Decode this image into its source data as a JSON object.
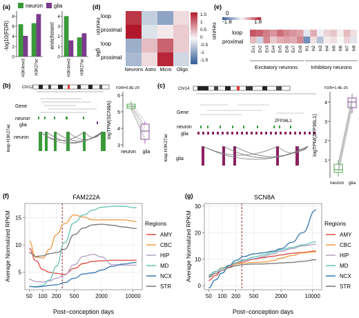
{
  "panels": {
    "a": {
      "tag": "(a)",
      "legend": [
        "neuron",
        "glia"
      ],
      "ylabel_left": "-log10(FDR)",
      "ylabel_right": "enrichment",
      "categories": [
        "H3K4me3",
        "H3K27ac"
      ],
      "colors": {
        "neuron": "#3a9a3a",
        "glia": "#7a3b8c"
      }
    },
    "b": {
      "tag": "(b)",
      "chrom": "Chr12",
      "gene_row": "Gene",
      "neuron_row": "neuron",
      "glia_row": "glia",
      "track_label": "loop H3K27ac",
      "loop_neuron": "neuron",
      "fdr": "FDR=6.8E-29",
      "ylabel": "logTPM(SCN8A)",
      "xcats": [
        "neuron",
        "glia"
      ]
    },
    "c": {
      "tag": "(c)",
      "chrom": "Chr14",
      "gene_row": "Gene",
      "gene_name": "ZFP36L1",
      "neuron_row": "neuron",
      "glia_row": "glia",
      "track_label": "loop H3K27ac",
      "loop_glia": "glia",
      "fdr": "FDR=1.4E-25",
      "ylabel": "logTPM(ZFP36L1)",
      "xcats": [
        "neuron",
        "glia"
      ]
    },
    "d": {
      "tag": "(d)",
      "rows": [
        "loop",
        "proximal",
        "loop",
        "proximal"
      ],
      "groups": [
        "neuron",
        "glia"
      ],
      "cols": [
        "Neurons",
        "Astro",
        "Micro",
        "Oligo"
      ],
      "colorbar": [
        "1.5",
        "1",
        "0.5",
        "0",
        "-0.5",
        "-1",
        "-1.5"
      ]
    },
    "e": {
      "tag": "(e)",
      "rows": [
        "loop",
        "proximal"
      ],
      "group": "neuron",
      "scale_min": "-1.8",
      "scale_zero": "0",
      "scale_max": "1.8",
      "cols": [
        "Ex1",
        "Ex2",
        "Ex3",
        "Ex4",
        "Ex5",
        "Ex6",
        "Ex7",
        "Ex8",
        "In1",
        "In2",
        "In3",
        "In4",
        "In5",
        "In6",
        "In7",
        "In8"
      ],
      "group_ex": "Excitatory neurons",
      "group_in": "Inhibitory neurons"
    },
    "f": {
      "tag": "(f)",
      "title": "FAM222A",
      "ylabel": "Average Normalized RPKM",
      "xlabel": "Post−conception days",
      "yticks": [
        "5",
        "10",
        "15"
      ],
      "xticks": [
        "50",
        "100",
        "200",
        "500",
        "2000",
        "10000"
      ]
    },
    "g": {
      "tag": "(g)",
      "title": "SCN8A",
      "ylabel": "Average Normalized RPKM",
      "xlabel": "Post−conception days",
      "yticks": [
        "0",
        "10",
        "20",
        "30"
      ],
      "xticks": [
        "50",
        "100",
        "200",
        "500",
        "2000",
        "10000"
      ]
    }
  },
  "legend_fg": {
    "title": "Regions",
    "items": [
      "AMY",
      "CBC",
      "HIP",
      "MD",
      "NCX",
      "STR"
    ]
  },
  "region_colors": [
    "#e0524a",
    "#f0a04b",
    "#b8a3c6",
    "#6ec6b7",
    "#3f7db3",
    "#7b7b7b"
  ],
  "chart_data": [
    {
      "type": "bar",
      "panel": "a-left",
      "categories": [
        "H3K4me3",
        "H3K27ac"
      ],
      "series": [
        {
          "name": "neuron",
          "values": [
            6.4,
            6.6
          ]
        },
        {
          "name": "glia",
          "values": [
            4.1,
            8.4
          ]
        }
      ],
      "ylabel": "-log10(FDR)",
      "ylim": [
        0,
        9
      ]
    },
    {
      "type": "bar",
      "panel": "a-right",
      "categories": [
        "H3K4me3",
        "H3K27ac"
      ],
      "series": [
        {
          "name": "neuron",
          "values": [
            4.0,
            1.9
          ]
        },
        {
          "name": "glia",
          "values": [
            1.6,
            2.3
          ]
        }
      ],
      "ylabel": "enrichment",
      "ylim": [
        0,
        4.5
      ]
    },
    {
      "type": "heatmap",
      "panel": "d",
      "rows": [
        "neuron loop",
        "neuron proximal",
        "glia loop",
        "glia proximal"
      ],
      "cols": [
        "Neurons",
        "Astro",
        "Micro",
        "Oligo"
      ],
      "values": [
        [
          1.3,
          -0.4,
          -0.8,
          0.2
        ],
        [
          1.5,
          -0.2,
          0.1,
          0.3
        ],
        [
          -0.7,
          0.4,
          1.0,
          0.3
        ],
        [
          -0.6,
          0.2,
          1.4,
          -0.3
        ]
      ],
      "zlim": [
        -1.5,
        1.5
      ]
    },
    {
      "type": "heatmap",
      "panel": "e",
      "rows": [
        "neuron loop",
        "neuron proximal"
      ],
      "cols": [
        "Ex1",
        "Ex2",
        "Ex3",
        "Ex4",
        "Ex5",
        "Ex6",
        "Ex7",
        "Ex8",
        "In1",
        "In2",
        "In3",
        "In4",
        "In5",
        "In6",
        "In7",
        "In8"
      ],
      "values": [
        [
          1.3,
          1.2,
          1.0,
          0.8,
          1.1,
          0.9,
          0.8,
          0.7,
          -0.2,
          0.6,
          -0.1,
          0.3,
          0.4,
          0.1,
          0.5,
          0.2
        ],
        [
          0.5,
          -0.4,
          0.9,
          0.4,
          0.6,
          0.7,
          0.6,
          0.9,
          -1.2,
          0.2,
          -0.6,
          0.1,
          0.2,
          0.0,
          0.3,
          -0.2
        ]
      ],
      "zlim": [
        -1.8,
        1.8
      ]
    },
    {
      "type": "line",
      "panel": "f",
      "title": "FAM222A",
      "xscale": "log",
      "x": [
        50,
        70,
        100,
        140,
        200,
        300,
        500,
        800,
        1300,
        2000,
        3500,
        6000,
        12000
      ],
      "series": [
        {
          "name": "AMY",
          "values": [
            9.4,
            7.1,
            5.5,
            5.0,
            4.8,
            4.6,
            5.7,
            6.6,
            7.0,
            7.1,
            7.2,
            7.2,
            7.2
          ]
        },
        {
          "name": "CBC",
          "values": [
            10.7,
            7.8,
            7.6,
            9.2,
            11.9,
            13.9,
            15.5,
            15.1,
            14.6,
            14.6,
            14.6,
            14.6,
            14.3
          ]
        },
        {
          "name": "HIP",
          "values": [
            3.7,
            3.3,
            3.2,
            3.4,
            3.9,
            4.5,
            6.4,
            7.9,
            8.3,
            7.8,
            6.4,
            6.3,
            6.3
          ]
        },
        {
          "name": "MD",
          "values": [
            2.4,
            2.4,
            2.6,
            3.6,
            6.1,
            10.4,
            14.1,
            15.5,
            16.4,
            16.9,
            17.1,
            17.1,
            16.8
          ]
        },
        {
          "name": "NCX",
          "values": [
            2.4,
            2.3,
            2.4,
            2.6,
            2.7,
            3.1,
            3.9,
            4.7,
            4.9,
            5.4,
            6.1,
            6.5,
            6.8
          ]
        },
        {
          "name": "STR",
          "values": [
            8.6,
            7.9,
            8.0,
            8.4,
            8.6,
            9.2,
            11.9,
            13.1,
            13.7,
            13.8,
            13.6,
            13.3,
            13.0
          ]
        }
      ],
      "ylabel": "Average Normalized RPKM",
      "xlabel": "Post−conception days",
      "ylim": [
        1.8,
        17.6
      ]
    },
    {
      "type": "line",
      "panel": "g",
      "title": "SCN8A",
      "xscale": "log",
      "x": [
        50,
        70,
        100,
        140,
        200,
        300,
        500,
        800,
        1300,
        2000,
        3500,
        6000,
        12000
      ],
      "series": [
        {
          "name": "AMY",
          "values": [
            2.0,
            3.8,
            5.8,
            7.0,
            8.3,
            9.2,
            10.0,
            10.6,
            11.1,
            11.6,
            12.2,
            12.6,
            13.1
          ]
        },
        {
          "name": "CBC",
          "values": [
            3.8,
            5.2,
            6.8,
            7.6,
            8.2,
            8.6,
            8.8,
            8.9,
            9.4,
            10.4,
            11.4,
            12.4,
            12.8
          ]
        },
        {
          "name": "HIP",
          "values": [
            3.6,
            5.2,
            6.4,
            7.6,
            8.6,
            9.4,
            10.2,
            11.0,
            12.0,
            13.0,
            14.0,
            15.0,
            15.6
          ]
        },
        {
          "name": "MD",
          "values": [
            4.0,
            5.4,
            6.6,
            7.6,
            8.8,
            9.8,
            10.8,
            11.6,
            12.6,
            13.6,
            14.4,
            15.4,
            16.6
          ]
        },
        {
          "name": "NCX",
          "values": [
            -0.8,
            2.2,
            4.8,
            7.6,
            9.6,
            11.0,
            12.0,
            12.4,
            13.0,
            14.0,
            16.4,
            20.0,
            28.6
          ]
        },
        {
          "name": "STR",
          "values": [
            3.2,
            4.6,
            5.8,
            6.8,
            7.6,
            8.0,
            8.2,
            8.2,
            8.4,
            8.6,
            8.8,
            9.2,
            9.8
          ]
        }
      ],
      "ylabel": "Average Normalized RPKM",
      "xlabel": "Post−conception days",
      "ylim": [
        -1.5,
        31
      ]
    }
  ]
}
